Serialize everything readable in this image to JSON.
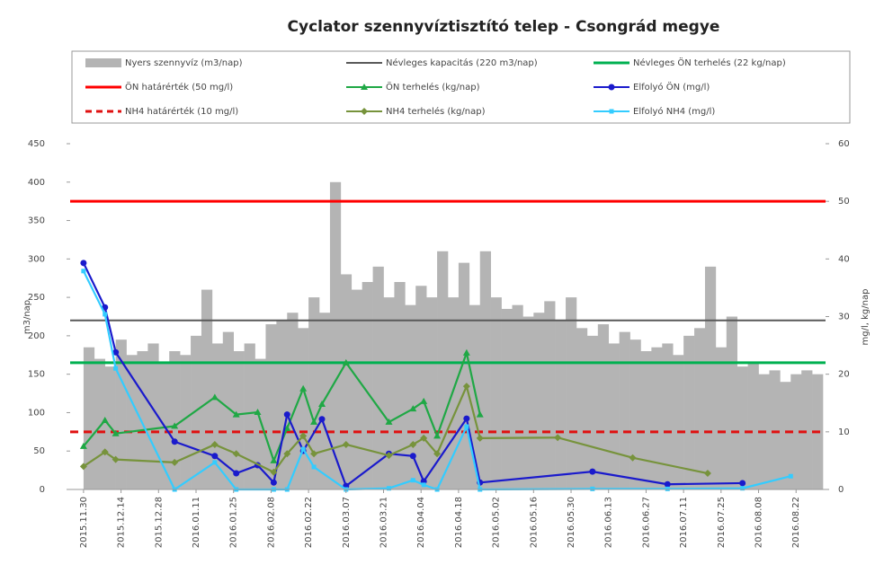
{
  "chart_data": {
    "type": "combo",
    "title": "Cyclator szennyvíztisztító telep - Csongrád megye",
    "ylabel": "m3/nap",
    "y2label": "mg/l, kg/nap",
    "xlim": [
      "2015.11.25",
      "2016.09.02"
    ],
    "xticks": [
      "2015.11.30",
      "2015.12.14",
      "2015.12.28",
      "2016.01.11",
      "2016.01.25",
      "2016.02.08",
      "2016.02.22",
      "2016.03.07",
      "2016.03.21",
      "2016.04.04",
      "2016.04.18",
      "2016.05.02",
      "2016.05.16",
      "2016.05.30",
      "2016.06.13",
      "2016.06.27",
      "2016.07.11",
      "2016.07.25",
      "2016.08.08",
      "2016.08.22"
    ],
    "ylim": [
      0,
      450
    ],
    "yticks": [
      0,
      50,
      100,
      150,
      200,
      250,
      300,
      350,
      400,
      450
    ],
    "y2lim": [
      0,
      60
    ],
    "y2ticks": [
      0,
      10,
      20,
      30,
      40,
      50,
      60
    ],
    "series": [
      {
        "name": "Nyers szennyvíz (m3/nap)",
        "type": "bar",
        "axis": "y",
        "color": "#b4b4b4",
        "x": [
          "2015.11.30",
          "2015.12.04",
          "2015.12.08",
          "2015.12.12",
          "2015.12.16",
          "2015.12.20",
          "2015.12.24",
          "2015.12.28",
          "2016.01.01",
          "2016.01.05",
          "2016.01.09",
          "2016.01.13",
          "2016.01.17",
          "2016.01.21",
          "2016.01.25",
          "2016.01.29",
          "2016.02.02",
          "2016.02.06",
          "2016.02.10",
          "2016.02.14",
          "2016.02.18",
          "2016.02.22",
          "2016.02.26",
          "2016.03.01",
          "2016.03.05",
          "2016.03.09",
          "2016.03.13",
          "2016.03.17",
          "2016.03.21",
          "2016.03.25",
          "2016.03.29",
          "2016.04.02",
          "2016.04.06",
          "2016.04.10",
          "2016.04.14",
          "2016.04.18",
          "2016.04.22",
          "2016.04.26",
          "2016.04.30",
          "2016.05.04",
          "2016.05.08",
          "2016.05.12",
          "2016.05.16",
          "2016.05.20",
          "2016.05.24",
          "2016.05.28",
          "2016.06.01",
          "2016.06.05",
          "2016.06.09",
          "2016.06.13",
          "2016.06.17",
          "2016.06.21",
          "2016.06.25",
          "2016.06.29",
          "2016.07.03",
          "2016.07.07",
          "2016.07.11",
          "2016.07.15",
          "2016.07.19",
          "2016.07.23",
          "2016.07.27",
          "2016.07.31",
          "2016.08.04",
          "2016.08.08",
          "2016.08.12",
          "2016.08.16",
          "2016.08.20",
          "2016.08.24",
          "2016.08.28"
        ],
        "values": [
          185,
          170,
          160,
          195,
          175,
          180,
          190,
          165,
          180,
          175,
          200,
          260,
          190,
          205,
          180,
          190,
          170,
          215,
          220,
          230,
          210,
          250,
          230,
          400,
          280,
          260,
          270,
          290,
          250,
          270,
          240,
          265,
          250,
          310,
          250,
          295,
          240,
          310,
          250,
          235,
          240,
          225,
          230,
          245,
          220,
          250,
          210,
          200,
          215,
          190,
          205,
          195,
          180,
          185,
          190,
          175,
          200,
          210,
          290,
          185,
          225,
          160,
          165,
          150,
          155,
          140,
          150,
          155,
          150
        ]
      },
      {
        "name": "Névleges kapacitás (220 m3/nap)",
        "type": "hline",
        "axis": "y",
        "color": "#595959",
        "value": 220
      },
      {
        "name": "Névleges ÖN terhelés (22 kg/nap)",
        "type": "hline",
        "axis": "y2",
        "color": "#00b050",
        "value": 22
      },
      {
        "name": "ÖN határérték (50 mg/l)",
        "type": "hline",
        "axis": "y2",
        "color": "#ff0000",
        "value": 50
      },
      {
        "name": "ÖN terhelés (kg/nap)",
        "type": "line",
        "axis": "y2",
        "color": "#1fa845",
        "marker": "triangle",
        "x": [
          "2015.11.30",
          "2015.12.08",
          "2015.12.12",
          "2016.01.03",
          "2016.01.18",
          "2016.01.26",
          "2016.02.03",
          "2016.02.09",
          "2016.02.14",
          "2016.02.20",
          "2016.02.24",
          "2016.02.27",
          "2016.03.07",
          "2016.03.23",
          "2016.04.01",
          "2016.04.05",
          "2016.04.10",
          "2016.04.21",
          "2016.04.26"
        ],
        "values": [
          7.5,
          12,
          9.7,
          11,
          16,
          13,
          13.4,
          5,
          10.6,
          17.5,
          11.7,
          14.8,
          22,
          11.7,
          14,
          15.3,
          9.3,
          23.7,
          13
        ]
      },
      {
        "name": "Elfolyó ÖN (mg/l)",
        "type": "line",
        "axis": "y2",
        "color": "#1a1acc",
        "marker": "circle",
        "x": [
          "2015.11.30",
          "2015.12.08",
          "2015.12.12",
          "2016.01.03",
          "2016.01.18",
          "2016.01.26",
          "2016.02.03",
          "2016.02.09",
          "2016.02.14",
          "2016.02.20",
          "2016.02.27",
          "2016.03.07",
          "2016.03.23",
          "2016.04.01",
          "2016.04.05",
          "2016.04.21",
          "2016.04.26",
          "2016.06.07",
          "2016.07.05",
          "2016.08.02"
        ],
        "values": [
          39.3,
          31.6,
          23.8,
          8.3,
          5.8,
          2.8,
          4.2,
          1.2,
          13,
          6.7,
          12.2,
          0.6,
          6.2,
          5.8,
          1.4,
          12.3,
          1.2,
          3.1,
          0.9,
          1.1
        ]
      },
      {
        "name": "NH4 határérték (10 mg/l)",
        "type": "hline",
        "axis": "y2",
        "color": "#e01010",
        "value": 10,
        "dash": true
      },
      {
        "name": "NH4 terhelés (kg/nap)",
        "type": "line",
        "axis": "y2",
        "color": "#77933c",
        "marker": "diamond",
        "x": [
          "2015.11.30",
          "2015.12.08",
          "2015.12.12",
          "2016.01.03",
          "2016.01.18",
          "2016.01.26",
          "2016.02.09",
          "2016.02.14",
          "2016.02.20",
          "2016.02.24",
          "2016.03.07",
          "2016.03.23",
          "2016.04.01",
          "2016.04.05",
          "2016.04.10",
          "2016.04.21",
          "2016.04.26",
          "2016.05.25",
          "2016.06.22",
          "2016.07.20"
        ],
        "values": [
          4,
          6.5,
          5.2,
          4.7,
          7.8,
          6.2,
          3,
          6.2,
          9.3,
          6.2,
          7.8,
          5.9,
          7.8,
          8.9,
          6.2,
          17.9,
          8.9,
          9,
          5.5,
          2.8
        ]
      },
      {
        "name": "Elfolyó NH4 (mg/l)",
        "type": "line",
        "axis": "y2",
        "color": "#33ccff",
        "marker": "square",
        "x": [
          "2015.11.30",
          "2015.12.08",
          "2015.12.12",
          "2016.01.03",
          "2016.01.18",
          "2016.01.26",
          "2016.02.09",
          "2016.02.14",
          "2016.02.20",
          "2016.02.24",
          "2016.03.07",
          "2016.03.23",
          "2016.04.01",
          "2016.04.05",
          "2016.04.10",
          "2016.04.21",
          "2016.04.26",
          "2016.06.07",
          "2016.07.05",
          "2016.08.02",
          "2016.08.20"
        ],
        "values": [
          37.9,
          30.4,
          21,
          0,
          4.7,
          0,
          0,
          0,
          7,
          3.9,
          0,
          0.2,
          1.6,
          0.8,
          0,
          10.9,
          0,
          0.1,
          0.1,
          0.2,
          2.3
        ]
      }
    ]
  }
}
